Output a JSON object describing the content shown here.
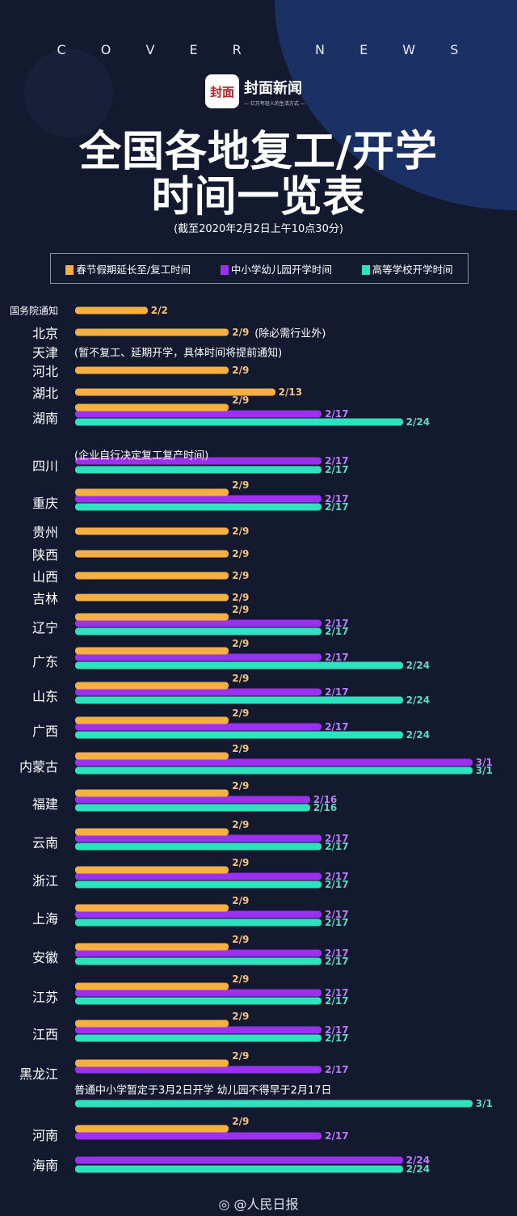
{
  "header": {
    "brand_letters": [
      "C",
      "O",
      "V",
      "E",
      "R",
      "N",
      "E",
      "W",
      "S"
    ],
    "logo_mark": "封面",
    "logo_name": "封面新闻",
    "logo_slogan": "— 亿万年轻人的生活方式 —",
    "title_line1": "全国各地复工/开学",
    "title_line2": "时间一览表",
    "subtitle": "(截至2020年2月2日上午10点30分)"
  },
  "colors": {
    "background": "#131a30",
    "work": "#f6b042",
    "school": "#9b30f0",
    "higher": "#2de3bf"
  },
  "footer": {
    "icon": "weibo-icon",
    "text": "@人民日报"
  },
  "chart_data": {
    "type": "bar",
    "orientation": "horizontal",
    "legend": [
      {
        "key": "work",
        "name": "春节假期延长至/复工时间",
        "color": "#f6b042"
      },
      {
        "key": "school",
        "name": "中小学幼儿园开学时间",
        "color": "#9b30f0"
      },
      {
        "key": "higher",
        "name": "高等学校开学时间",
        "color": "#2de3bf"
      }
    ],
    "legend_placement": "top",
    "rows": [
      {
        "region": "国务院通知",
        "work": "2/2"
      },
      {
        "region": "北京",
        "work": "2/9",
        "note": "(除必需行业外)"
      },
      {
        "region": "天津",
        "note": "(暂不复工、延期开学，具体时间将提前通知)"
      },
      {
        "region": "河北",
        "work": "2/9"
      },
      {
        "region": "湖北",
        "work": "2/13"
      },
      {
        "region": "湖南",
        "work": "2/9",
        "school": "2/17",
        "higher": "2/24"
      },
      {
        "region": "四川",
        "note": "(企业自行决定复工复产时间)",
        "school": "2/17",
        "higher": "2/17"
      },
      {
        "region": "重庆",
        "work": "2/9",
        "school": "2/17",
        "higher": "2/17"
      },
      {
        "region": "贵州",
        "work": "2/9"
      },
      {
        "region": "陕西",
        "work": "2/9"
      },
      {
        "region": "山西",
        "work": "2/9"
      },
      {
        "region": "吉林",
        "work": "2/9"
      },
      {
        "region": "辽宁",
        "work": "2/9",
        "school": "2/17",
        "higher": "2/17"
      },
      {
        "region": "广东",
        "work": "2/9",
        "school": "2/17",
        "higher": "2/24"
      },
      {
        "region": "山东",
        "work": "2/9",
        "school": "2/17",
        "higher": "2/24"
      },
      {
        "region": "广西",
        "work": "2/9",
        "school": "2/17",
        "higher": "2/24"
      },
      {
        "region": "内蒙古",
        "work": "2/9",
        "school": "3/1",
        "higher": "3/1"
      },
      {
        "region": "福建",
        "work": "2/9",
        "school": "2/16",
        "higher": "2/16"
      },
      {
        "region": "云南",
        "work": "2/9",
        "school": "2/17",
        "higher": "2/17"
      },
      {
        "region": "浙江",
        "work": "2/9",
        "school": "2/17",
        "higher": "2/17"
      },
      {
        "region": "上海",
        "work": "2/9",
        "school": "2/17",
        "higher": "2/17"
      },
      {
        "region": "安徽",
        "work": "2/9",
        "school": "2/17",
        "higher": "2/17"
      },
      {
        "region": "江苏",
        "work": "2/9",
        "school": "2/17",
        "higher": "2/17"
      },
      {
        "region": "江西",
        "work": "2/9",
        "school": "2/17",
        "higher": "2/17"
      },
      {
        "region": "黑龙江",
        "work": "2/9",
        "school": "2/17",
        "note": "普通中小学暂定于3月2日开学 幼儿园不得早于2月17日",
        "higher": "3/1"
      },
      {
        "region": "河南",
        "work": "2/9",
        "school": "2/17"
      },
      {
        "region": "海南",
        "school": "2/24",
        "higher": "2/24"
      }
    ]
  }
}
